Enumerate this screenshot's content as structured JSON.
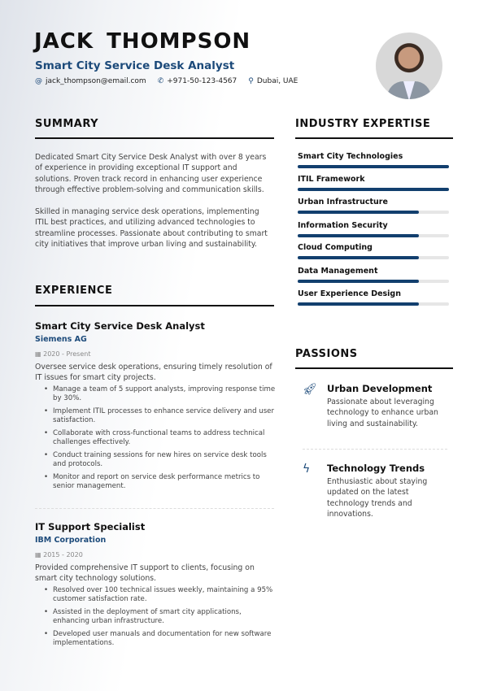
{
  "header": {
    "name": "JACK  THOMPSON",
    "title": "Smart City Service Desk Analyst",
    "contacts": [
      {
        "icon": "at-icon",
        "text": "jack_thompson@email.com"
      },
      {
        "icon": "phone-icon",
        "text": "+971-50-123-4567"
      },
      {
        "icon": "location-pin-icon",
        "text": "Dubai, UAE"
      }
    ]
  },
  "summary": {
    "heading": "SUMMARY",
    "paragraphs": [
      "Dedicated Smart City Service Desk Analyst with over 8 years of experience in providing exceptional IT support and solutions. Proven track record in enhancing user experience through effective problem-solving and communication skills.",
      "Skilled in managing service desk operations, implementing ITIL best practices, and utilizing advanced technologies to streamline processes. Passionate about contributing to smart city initiatives that improve urban living and sustainability."
    ]
  },
  "experience": {
    "heading": "EXPERIENCE",
    "jobs": [
      {
        "title": "Smart City Service Desk Analyst",
        "company": "Siemens AG",
        "dates": "2020 - Present",
        "description": "Oversee service desk operations, ensuring timely resolution of IT issues for smart city projects.",
        "bullets": [
          "Manage a team of 5 support analysts, improving response time by 30%.",
          "Implement ITIL processes to enhance service delivery and user satisfaction.",
          "Collaborate with cross-functional teams to address technical challenges effectively.",
          "Conduct training sessions for new hires on service desk tools and protocols.",
          "Monitor and report on service desk performance metrics to senior management."
        ]
      },
      {
        "title": "IT Support Specialist",
        "company": "IBM Corporation",
        "dates": "2015 - 2020",
        "description": "Provided comprehensive IT support to clients, focusing on smart city technology solutions.",
        "bullets": [
          "Resolved over 100 technical issues weekly, maintaining a 95% customer satisfaction rate.",
          "Assisted in the deployment of smart city applications, enhancing urban infrastructure.",
          "Developed user manuals and documentation for new software implementations."
        ]
      }
    ]
  },
  "expertise": {
    "heading": "INDUSTRY EXPERTISE",
    "items": [
      {
        "label": "Smart City Technologies",
        "level": 100
      },
      {
        "label": "ITIL Framework",
        "level": 100
      },
      {
        "label": "Urban Infrastructure",
        "level": 80
      },
      {
        "label": "Information Security",
        "level": 80
      },
      {
        "label": "Cloud Computing",
        "level": 80
      },
      {
        "label": "Data Management",
        "level": 80
      },
      {
        "label": "User Experience Design",
        "level": 80
      }
    ]
  },
  "passions": {
    "heading": "PASSIONS",
    "items": [
      {
        "icon": "rocket-icon",
        "title": "Urban Development",
        "text": "Passionate about leveraging technology to enhance urban living and sustainability."
      },
      {
        "icon": "lightning-icon",
        "title": "Technology Trends",
        "text": "Enthusiastic about staying updated on the latest technology trends and innovations."
      }
    ]
  },
  "colors": {
    "accent": "#1c4a7a",
    "bar": "#123f6e"
  }
}
